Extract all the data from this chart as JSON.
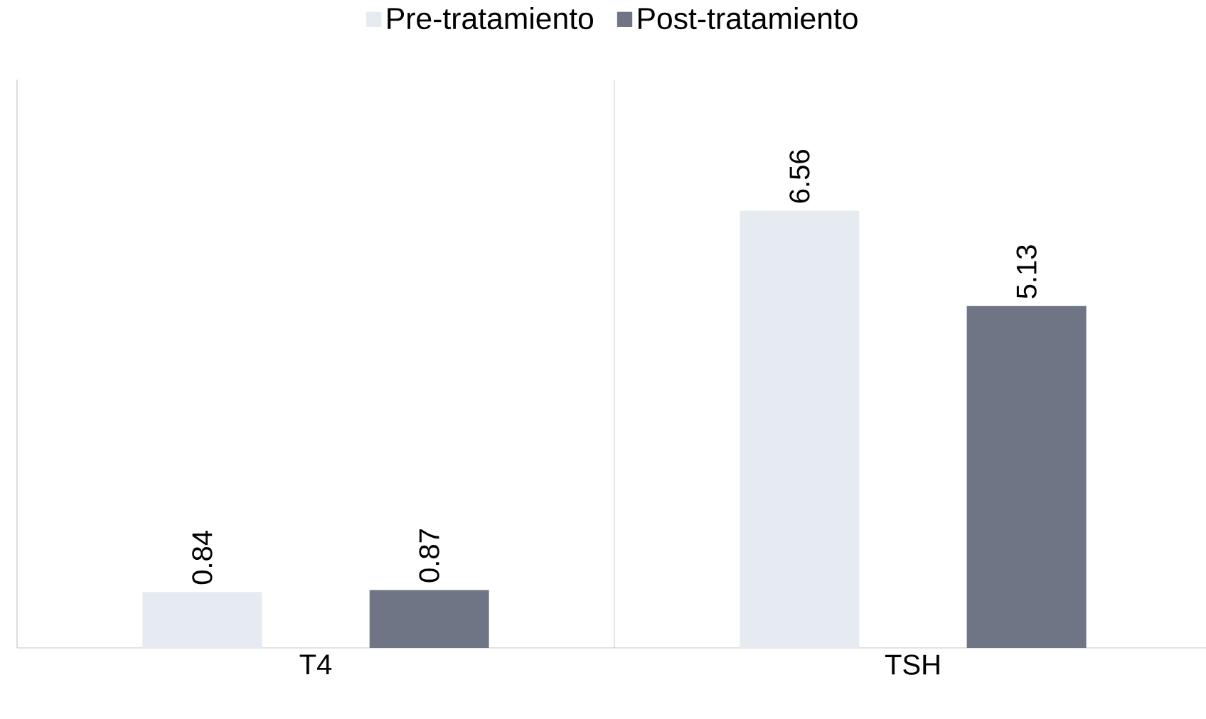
{
  "chart_data": {
    "type": "bar",
    "categories": [
      "T4",
      "TSH"
    ],
    "series": [
      {
        "name": "Pre-tratamiento",
        "color": "#e6ebf2",
        "values": [
          0.84,
          6.56
        ]
      },
      {
        "name": "Post-tratamiento",
        "color": "#6f7585",
        "values": [
          0.87,
          5.13
        ]
      }
    ],
    "tick_labels": "x",
    "data_labels": true,
    "legend": "top",
    "grid": "x"
  }
}
